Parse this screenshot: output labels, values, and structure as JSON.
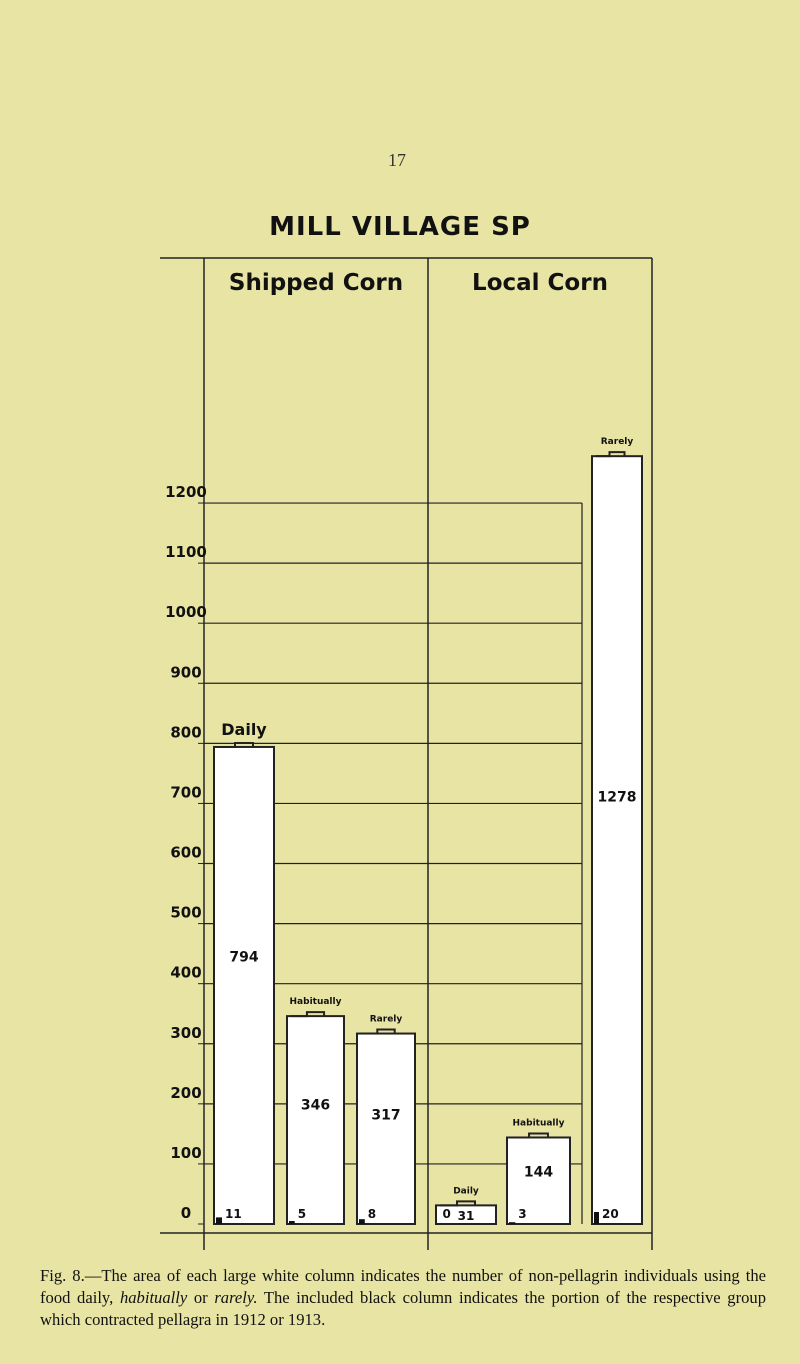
{
  "page_number": "17",
  "title": "MILL VILLAGE SP",
  "chart_data": {
    "type": "bar",
    "title": "MILL VILLAGE SP",
    "ylim": [
      0,
      1200
    ],
    "y_ticks": [
      "1200",
      "1100",
      "1000",
      "900",
      "800",
      "700",
      "600",
      "500",
      "400",
      "300",
      "200",
      "100",
      "0"
    ],
    "groups": [
      "Shipped Corn",
      "Local Corn"
    ],
    "grid": true,
    "series": [
      {
        "group": "Shipped Corn",
        "label": "Daily",
        "value": 794,
        "value_label": "794",
        "pellagra": 11,
        "pellagra_label": "11"
      },
      {
        "group": "Shipped Corn",
        "label": "Habitually",
        "value": 346,
        "value_label": "346",
        "pellagra": 5,
        "pellagra_label": "5"
      },
      {
        "group": "Shipped Corn",
        "label": "Rarely",
        "value": 317,
        "value_label": "317",
        "pellagra": 8,
        "pellagra_label": "8"
      },
      {
        "group": "Local Corn",
        "label": "Daily",
        "value": 31,
        "value_label": "31",
        "pellagra": 0,
        "pellagra_label": "0"
      },
      {
        "group": "Local Corn",
        "label": "Habitually",
        "value": 144,
        "value_label": "144",
        "pellagra": 3,
        "pellagra_label": "3"
      },
      {
        "group": "Local Corn",
        "label": "Rarely",
        "value": 1278,
        "value_label": "1278",
        "pellagra": 20,
        "pellagra_label": "20"
      }
    ]
  },
  "caption": {
    "prefix": "Fig. 8.—The area of each large white column indicates the number of non-pellagrin individuals using the food daily, ",
    "em1": "habitually",
    "mid": " or ",
    "em2": "rarely.",
    "suffix": " The included black column indicates the portion of the respective group which contracted pellagra in 1912 or 1913."
  }
}
